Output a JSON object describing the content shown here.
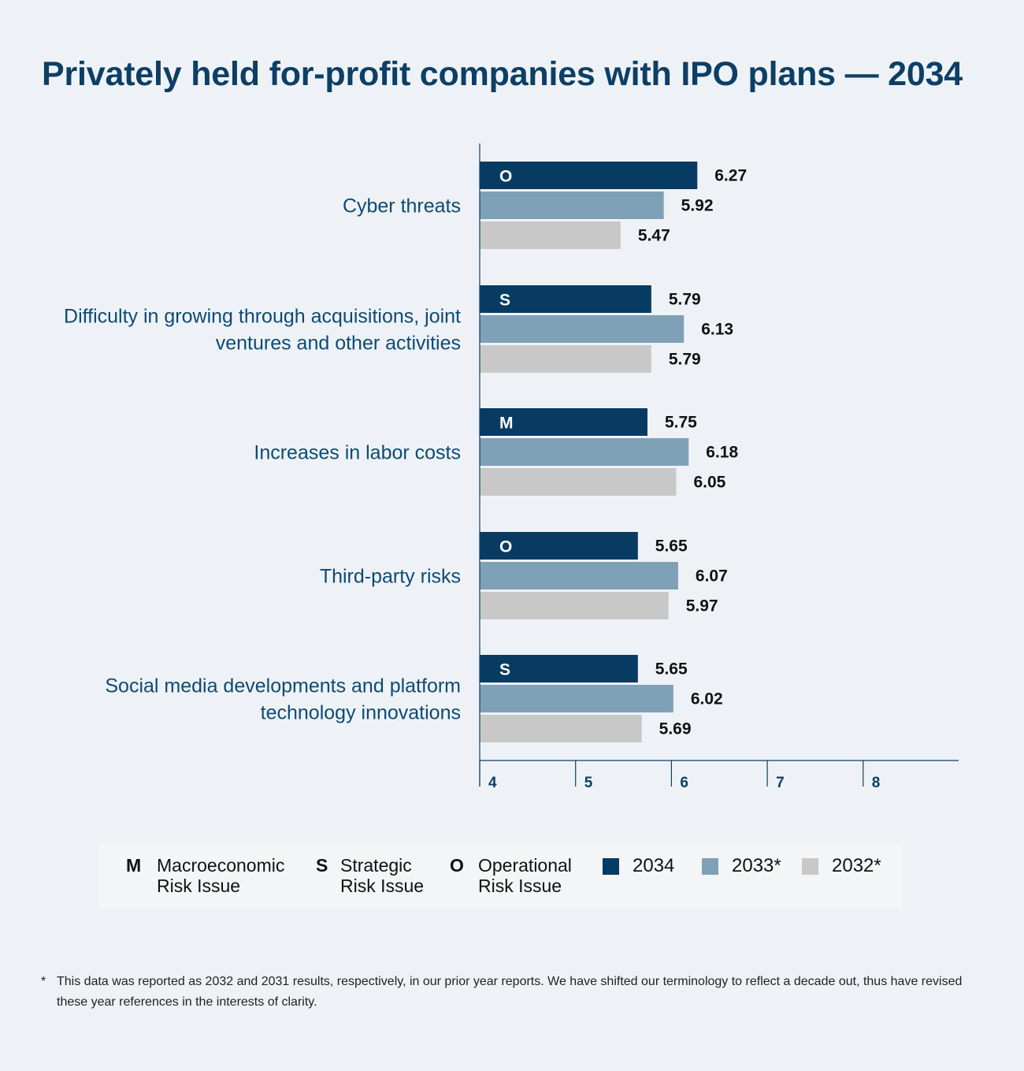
{
  "title": "Privately held for-profit companies with IPO plans — 2034",
  "colors": {
    "y2034": "#073b62",
    "y2033": "#7fa1b8",
    "y2032": "#c8c8c8",
    "axis": "#0d3f66"
  },
  "chart_data": {
    "type": "bar",
    "orientation": "horizontal",
    "categories": [
      "Cyber threats",
      "Difficulty in growing through acquisitions, joint ventures and other activities",
      "Increases in labor costs",
      "Third-party risks",
      "Social media developments and platform technology innovations"
    ],
    "category_tags": [
      "O",
      "S",
      "M",
      "O",
      "S"
    ],
    "series": [
      {
        "name": "2034",
        "values": [
          6.27,
          5.79,
          5.75,
          5.65,
          5.65
        ]
      },
      {
        "name": "2033*",
        "values": [
          5.92,
          6.13,
          6.18,
          6.07,
          6.02
        ]
      },
      {
        "name": "2032*",
        "values": [
          5.47,
          5.79,
          6.05,
          5.97,
          5.69
        ]
      }
    ],
    "xlim": [
      4,
      9
    ],
    "xticks": [
      4,
      5,
      6,
      7,
      8
    ],
    "grid": false,
    "legend_position": "bottom"
  },
  "legend": {
    "macro_letter": "M",
    "macro_text": "Macroeconomic\nRisk Issue",
    "strategic_letter": "S",
    "strategic_text": "Strategic\nRisk Issue",
    "operational_letter": "O",
    "operational_text": "Operational\nRisk Issue",
    "year_2034": "2034",
    "year_2033": "2033*",
    "year_2032": "2032*"
  },
  "footnote": {
    "star": "*",
    "text": "This data was reported as 2032 and 2031 results, respectively, in our prior year reports. We have shifted our terminology to reflect a decade out, thus have revised these year references in the interests of clarity."
  }
}
